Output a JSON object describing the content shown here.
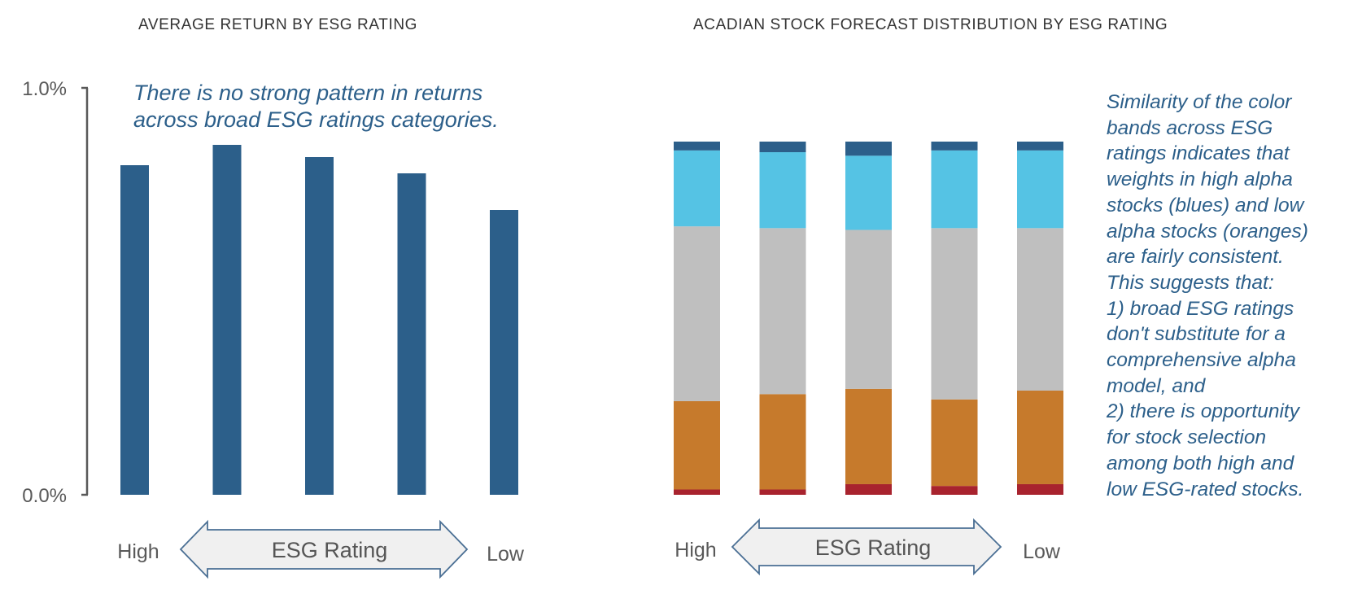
{
  "chart_data": [
    {
      "type": "bar",
      "title": "AVERAGE RETURN BY ESG RATING",
      "annotation": [
        "There is no strong pattern in returns",
        "across broad ESG ratings categories."
      ],
      "categories": [
        "",
        "",
        "",
        "",
        ""
      ],
      "values": [
        0.81,
        0.86,
        0.83,
        0.79,
        0.7
      ],
      "ylim": [
        0,
        1.0
      ],
      "yticks": [
        "0.0%",
        "1.0%"
      ],
      "x_end_labels": {
        "left": "High",
        "right": "Low"
      },
      "axis_arrow_label": "ESG Rating",
      "bar_color": "#2c5f8a",
      "grid": false
    },
    {
      "type": "bar",
      "stacked": true,
      "title": "ACADIAN STOCK FORECAST DISTRIBUTION BY ESG RATING",
      "annotation": [
        "Similarity of the color",
        "bands across ESG",
        "ratings indicates that",
        "weights in high alpha",
        "stocks (blues) and low",
        "alpha stocks (oranges)",
        "are fairly consistent.",
        "This suggests that:",
        "1) broad ESG ratings",
        "don't substitute for a",
        "comprehensive alpha",
        "model, and",
        "2) there is opportunity",
        "for stock selection",
        "among both high and",
        "low ESG-rated stocks."
      ],
      "categories": [
        "",
        "",
        "",
        "",
        ""
      ],
      "series": [
        {
          "color": "#a8232e",
          "values": [
            1.5,
            1.5,
            3.0,
            2.5,
            3.0
          ]
        },
        {
          "color": "#c67a2c",
          "values": [
            25.0,
            27.0,
            27.0,
            24.5,
            26.5
          ]
        },
        {
          "color": "#bfbfbf",
          "values": [
            49.5,
            47.0,
            45.0,
            48.5,
            46.0
          ]
        },
        {
          "color": "#55c3e4",
          "values": [
            21.5,
            21.5,
            21.0,
            22.0,
            22.0
          ]
        },
        {
          "color": "#2c5f8a",
          "values": [
            2.5,
            3.0,
            4.0,
            2.5,
            2.5
          ]
        }
      ],
      "ylim": [
        0,
        100
      ],
      "x_end_labels": {
        "left": "High",
        "right": "Low"
      },
      "axis_arrow_label": "ESG Rating",
      "grid": false
    }
  ],
  "colors": {
    "annotation": "#2c5f8a",
    "axis": "#595959",
    "arrow_fill": "#f0f0f0",
    "arrow_stroke": "#4a6f94"
  }
}
